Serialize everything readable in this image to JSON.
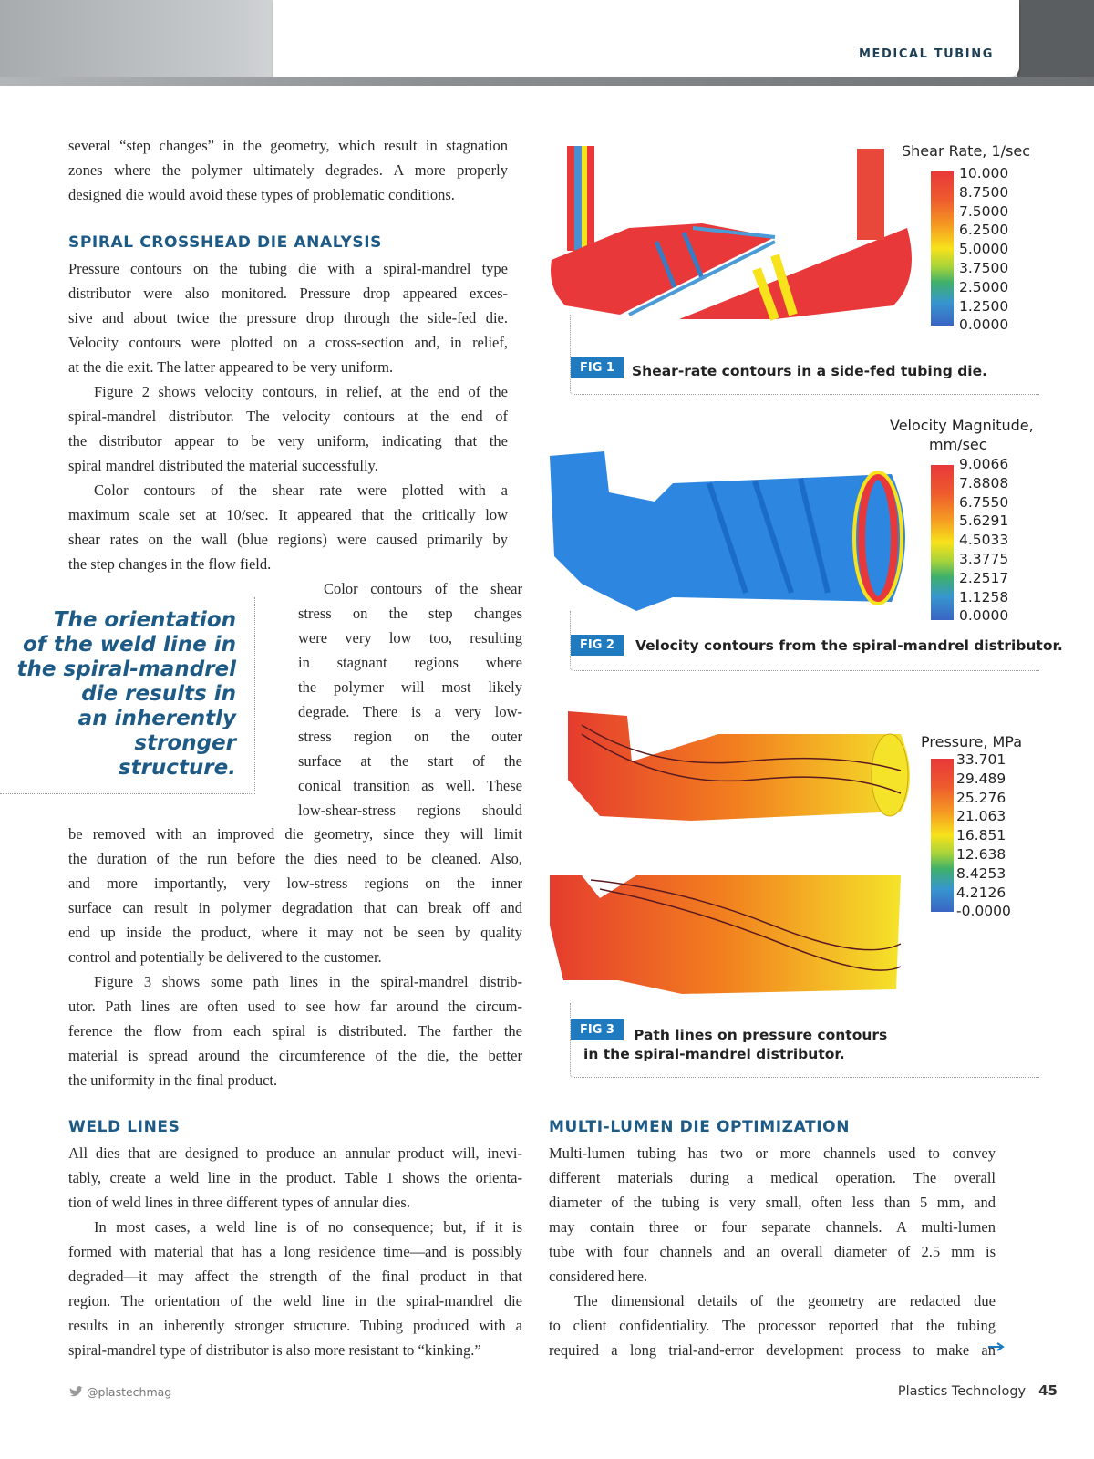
{
  "header": {
    "section": "MEDICAL TUBING"
  },
  "left_top": [
    {
      "indent": false,
      "lines": [
        "several “step changes” in the geometry, which result in stagnation",
        "zones where the polymer ultimately degrades. A more properly",
        "designed die would avoid these types of problematic conditions."
      ]
    }
  ],
  "heading1": "SPIRAL CROSSHEAD DIE ANALYSIS",
  "left_mid": [
    {
      "indent": false,
      "lines": [
        "Pressure contours on the tubing die with a spiral-mandrel type",
        "distributor were also monitored. Pressure drop appeared exces-",
        "sive and about twice the pressure drop through the side-fed die.",
        "Velocity contours were plotted on a cross-section and, in relief,",
        "at the die exit. The latter appeared to be very uniform."
      ]
    },
    {
      "indent": true,
      "lines": [
        "Figure 2 shows velocity contours, in relief, at the end of the",
        "spiral-mandrel distributor. The velocity contours at the end of",
        "the distributor appear to be very uniform, indicating that the",
        "spiral mandrel distributed the material successfully."
      ]
    },
    {
      "indent": true,
      "lines": [
        "Color contours of the shear rate were plotted with a",
        "maximum scale set at 10/sec. It appeared that the critically low",
        "shear rates on the wall (blue regions) were caused primarily by",
        "the step changes in the flow field."
      ]
    }
  ],
  "left_narrow": [
    {
      "indent": true,
      "cont": true,
      "lines": [
        "Color contours of the shear",
        "stress on the step changes",
        "were very low too, resulting",
        "in stagnant regions where",
        "the polymer will most likely",
        "degrade. There is a very low-",
        "stress region on the outer",
        "surface at the start of the",
        "conical transition as well. These",
        "low-shear-stress regions should"
      ]
    }
  ],
  "left_bottom": [
    {
      "indent": false,
      "lines": [
        "be removed with an improved die geometry, since they will limit",
        "the duration of the run before the dies need to be cleaned.  Also,",
        "and more importantly, very low-stress regions on the inner",
        "surface can result in polymer degradation that can break off and",
        "end up inside the product, where it may not be seen by quality",
        "control and potentially be delivered to the customer."
      ]
    },
    {
      "indent": true,
      "lines": [
        "Figure 3 shows some path lines in the spiral-mandrel distrib-",
        "utor. Path lines are often used to see how far around the circum-",
        "ference the flow from each spiral is distributed. The farther the",
        "material is spread around the circumference of the die, the better",
        "the uniformity in the final product."
      ]
    }
  ],
  "pull_quote": [
    "The orientation",
    "of the weld line in",
    "the spiral-mandrel",
    "die results in",
    "an inherently",
    "stronger",
    "structure."
  ],
  "heading2": "WELD LINES",
  "weld": [
    {
      "indent": false,
      "lines": [
        "All dies that are designed to produce an annular product will, inevi-",
        "tably, create a weld line in the product. Table 1 shows the orienta-",
        "tion of weld lines in three different types of annular dies."
      ]
    },
    {
      "indent": true,
      "lines": [
        "In most cases, a weld line is of no consequence; but, if it is",
        "formed with material that has a long residence time—and is possibly",
        "degraded—it may affect the strength of the final product in that",
        "region. The orientation of the weld line in the spiral-mandrel die",
        "results in an inherently stronger structure. Tubing produced with a",
        "spiral-mandrel type of distributor is also more resistant to “kinking.”"
      ]
    }
  ],
  "heading3": "MULTI-LUMEN DIE OPTIMIZATION",
  "multi": [
    {
      "indent": false,
      "lines": [
        "Multi-lumen tubing has two or more channels used to convey",
        "different materials during a medical operation. The overall",
        "diameter of the tubing is very small, often less than 5 mm, and",
        "may contain three or four separate channels. A multi-lumen",
        "tube with four channels and an overall diameter of 2.5 mm is",
        "considered here."
      ]
    },
    {
      "indent": true,
      "cont": true,
      "lines": [
        "The dimensional details of the geometry are redacted due",
        "to client confidentiality. The processor reported that the tubing",
        "required a long trial-and-error development process to make an"
      ]
    }
  ],
  "figures": [
    {
      "badge": "FIG 1",
      "caption": [
        "Shear-rate contours in a side-fed tubing die."
      ],
      "legend_title": [
        "Shear Rate, 1/sec"
      ],
      "ticks": [
        "10.000",
        "8.7500",
        "7.5000",
        "6.2500",
        "5.0000",
        "3.7500",
        "2.5000",
        "1.2500",
        "0.0000"
      ]
    },
    {
      "badge": "FIG 2",
      "caption": [
        "Velocity contours from the spiral-mandrel distributor."
      ],
      "legend_title": [
        "Velocity Magnitude,",
        "mm/sec"
      ],
      "ticks": [
        "9.0066",
        "7.8808",
        "6.7550",
        "5.6291",
        "4.5033",
        "3.3775",
        "2.2517",
        "1.1258",
        "0.0000"
      ]
    },
    {
      "badge": "FIG 3",
      "caption": [
        "Path lines on pressure contours",
        "in the spiral-mandrel distributor."
      ],
      "legend_title": [
        "Pressure, MPa"
      ],
      "ticks": [
        "33.701",
        "29.489",
        "25.276",
        "21.063",
        "16.851",
        "12.638",
        "8.4253",
        "4.2126",
        "-0.0000"
      ]
    }
  ],
  "colors": {
    "heading": "#1d5a86",
    "badge": "#1f7ac0"
  },
  "footer": {
    "handle": "@plastechmag",
    "magazine": "Plastics Technology",
    "page": "45"
  }
}
